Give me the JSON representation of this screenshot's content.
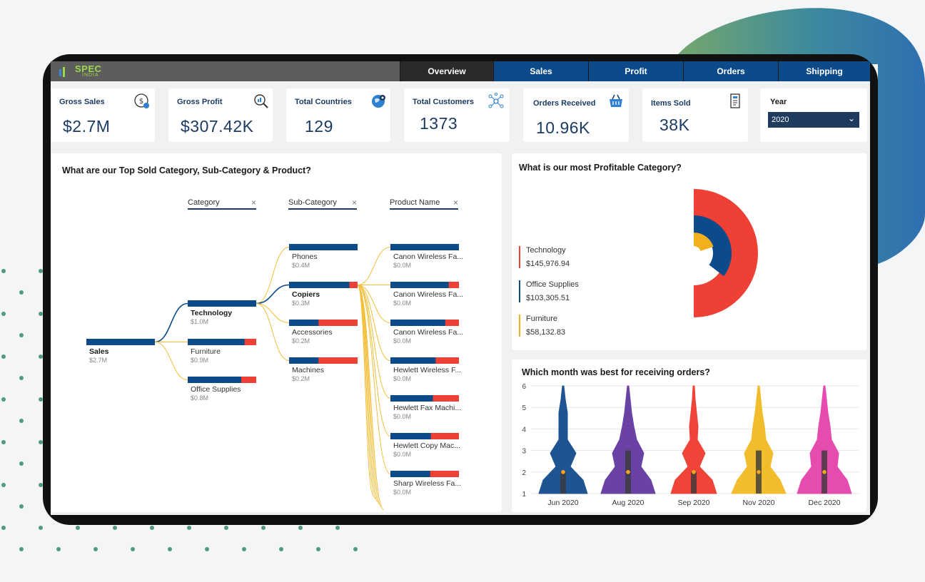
{
  "brand": {
    "logo_text": "SPEC",
    "logo_sub": "INDIA"
  },
  "tabs": [
    "Overview",
    "Sales",
    "Profit",
    "Orders",
    "Shipping"
  ],
  "kpis": [
    {
      "label": "Gross Sales",
      "value": "$2.7M",
      "icon": "dollar-check-icon"
    },
    {
      "label": "Gross Profit",
      "value": "$307.42K",
      "icon": "search-chart-icon"
    },
    {
      "label": "Total Countries",
      "value": "129",
      "icon": "globe-pin-icon"
    },
    {
      "label": "Total Customers",
      "value": "1373",
      "icon": "network-people-icon"
    },
    {
      "label": "Orders Received",
      "value": "10.96K",
      "icon": "basket-icon"
    },
    {
      "label": "Items Sold",
      "value": "38K",
      "icon": "receipt-icon"
    }
  ],
  "year": {
    "label": "Year",
    "selected": "2020"
  },
  "tree": {
    "title": "What are our Top Sold Category, Sub-Category & Product?",
    "columns": [
      "Category",
      "Sub-Category",
      "Product Name"
    ],
    "root": {
      "label": "Sales",
      "value": "$2.7M"
    },
    "categories": [
      {
        "label": "Technology",
        "value": "$1.0M",
        "share": 1.0,
        "bold": true
      },
      {
        "label": "Furniture",
        "value": "$0.9M",
        "share": 0.83,
        "bold": false
      },
      {
        "label": "Office Supplies",
        "value": "$0.8M",
        "share": 0.78,
        "bold": false
      }
    ],
    "subcategories": [
      {
        "label": "Phones",
        "value": "$0.4M",
        "share": 1.0,
        "bold": false
      },
      {
        "label": "Copiers",
        "value": "$0.3M",
        "share": 0.88,
        "bold": true
      },
      {
        "label": "Accessories",
        "value": "$0.2M",
        "share": 0.43,
        "bold": false
      },
      {
        "label": "Machines",
        "value": "$0.2M",
        "share": 0.43,
        "bold": false
      }
    ],
    "products": [
      {
        "label": "Canon Wireless Fa...",
        "value": "$0.0M",
        "share": 1.0
      },
      {
        "label": "Canon Wireless Fa...",
        "value": "$0.0M",
        "share": 0.85
      },
      {
        "label": "Canon Wireless Fa...",
        "value": "$0.0M",
        "share": 0.8
      },
      {
        "label": "Hewlett Wireless F...",
        "value": "$0.0M",
        "share": 0.66
      },
      {
        "label": "Hewlett Fax Machi...",
        "value": "$0.0M",
        "share": 0.62
      },
      {
        "label": "Hewlett Copy Mac...",
        "value": "$0.0M",
        "share": 0.59
      },
      {
        "label": "Sharp Wireless Fa...",
        "value": "$0.0M",
        "share": 0.58
      }
    ]
  },
  "profit": {
    "title": "What is our most Profitable Category?",
    "categories": [
      {
        "name": "Technology",
        "value": "$145,976.94",
        "amount": 145976.94,
        "color": "#ee4035"
      },
      {
        "name": "Office Supplies",
        "value": "$103,305.51",
        "amount": 103305.51,
        "color": "#0c4a8a"
      },
      {
        "name": "Furniture",
        "value": "$58,132.83",
        "amount": 58132.83,
        "color": "#f1b11f"
      }
    ]
  },
  "orders": {
    "title": "Which month was best for receiving orders?",
    "y_ticks": [
      "6",
      "5",
      "4",
      "3",
      "2",
      "1"
    ],
    "months": [
      {
        "label": "Jun 2020",
        "color": "#1f5492",
        "q1": 1,
        "q3": 2,
        "median": 2
      },
      {
        "label": "Aug 2020",
        "color": "#6a42a3",
        "q1": 1,
        "q3": 3,
        "median": 2
      },
      {
        "label": "Sep 2020",
        "color": "#f04438",
        "q1": 1,
        "q3": 2,
        "median": 2
      },
      {
        "label": "Nov 2020",
        "color": "#f1bd2c",
        "q1": 1,
        "q3": 3,
        "median": 2
      },
      {
        "label": "Dec 2020",
        "color": "#e64bb0",
        "q1": 1,
        "q3": 3,
        "median": 2
      }
    ]
  }
}
